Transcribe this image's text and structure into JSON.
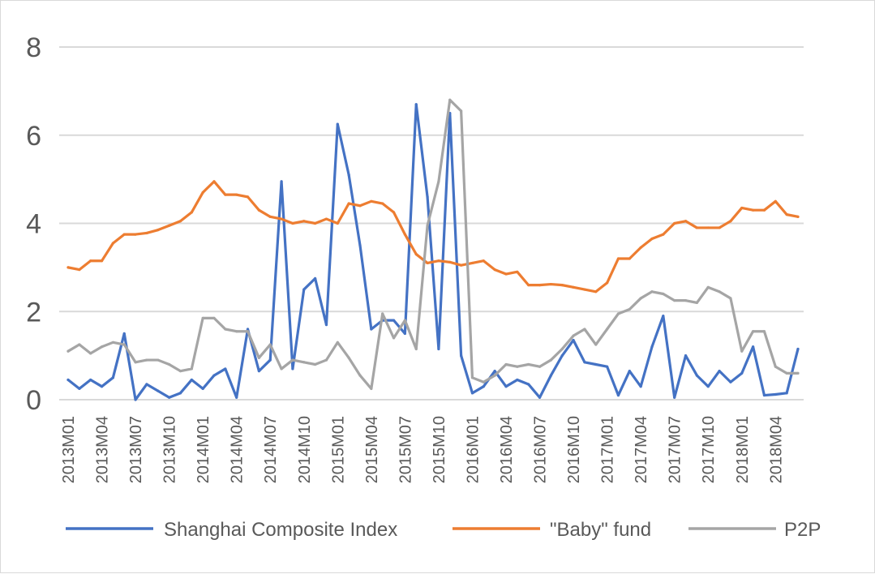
{
  "chart_data": {
    "type": "line",
    "title": "",
    "xlabel": "",
    "ylabel": "",
    "ylim": [
      0,
      8
    ],
    "yticks": [
      0,
      2,
      4,
      6,
      8
    ],
    "grid": true,
    "legend_position": "bottom",
    "x": [
      "2013M01",
      "2013M02",
      "2013M03",
      "2013M04",
      "2013M05",
      "2013M06",
      "2013M07",
      "2013M08",
      "2013M09",
      "2013M10",
      "2013M11",
      "2013M12",
      "2014M01",
      "2014M02",
      "2014M03",
      "2014M04",
      "2014M05",
      "2014M06",
      "2014M07",
      "2014M08",
      "2014M09",
      "2014M10",
      "2014M11",
      "2014M12",
      "2015M01",
      "2015M02",
      "2015M03",
      "2015M04",
      "2015M05",
      "2015M06",
      "2015M07",
      "2015M08",
      "2015M09",
      "2015M10",
      "2015M11",
      "2015M12",
      "2016M01",
      "2016M02",
      "2016M03",
      "2016M04",
      "2016M05",
      "2016M06",
      "2016M07",
      "2016M08",
      "2016M09",
      "2016M10",
      "2016M11",
      "2016M12",
      "2017M01",
      "2017M02",
      "2017M03",
      "2017M04",
      "2017M05",
      "2017M06",
      "2017M07",
      "2017M08",
      "2017M09",
      "2017M10",
      "2017M11",
      "2017M12",
      "2018M01",
      "2018M02",
      "2018M03",
      "2018M04",
      "2018M05",
      "2018M06"
    ],
    "x_tick_labels": [
      "2013M01",
      "2013M04",
      "2013M07",
      "2013M10",
      "2014M01",
      "2014M04",
      "2014M07",
      "2014M10",
      "2015M01",
      "2015M04",
      "2015M07",
      "2015M10",
      "2016M01",
      "2016M04",
      "2016M07",
      "2016M10",
      "2017M01",
      "2017M04",
      "2017M07",
      "2017M10",
      "2018M01",
      "2018M04"
    ],
    "series": [
      {
        "name": "Shanghai Composite Index",
        "color": "#4472c4",
        "values": [
          0.45,
          0.25,
          0.45,
          0.3,
          0.5,
          1.5,
          0.0,
          0.35,
          0.2,
          0.05,
          0.15,
          0.45,
          0.25,
          0.55,
          0.7,
          0.05,
          1.6,
          0.65,
          0.9,
          4.95,
          0.7,
          2.5,
          2.75,
          1.7,
          6.25,
          5.1,
          3.5,
          1.6,
          1.8,
          1.8,
          1.5,
          6.7,
          4.6,
          1.15,
          6.5,
          1.0,
          0.15,
          0.3,
          0.65,
          0.3,
          0.45,
          0.35,
          0.05,
          0.55,
          1.0,
          1.35,
          0.85,
          0.8,
          0.75,
          0.1,
          0.65,
          0.3,
          1.2,
          1.9,
          0.05,
          1.0,
          0.55,
          0.3,
          0.65,
          0.4,
          0.6,
          1.2,
          0.1,
          0.12,
          0.15,
          1.15
        ]
      },
      {
        "name": "\"Baby\" fund",
        "color": "#ed7d31",
        "values": [
          3.0,
          2.95,
          3.15,
          3.15,
          3.55,
          3.75,
          3.75,
          3.78,
          3.85,
          3.95,
          4.05,
          4.25,
          4.7,
          4.95,
          4.65,
          4.65,
          4.6,
          4.3,
          4.15,
          4.1,
          4.0,
          4.05,
          4.0,
          4.1,
          4.0,
          4.45,
          4.4,
          4.5,
          4.45,
          4.25,
          3.75,
          3.3,
          3.1,
          3.15,
          3.12,
          3.05,
          3.1,
          3.15,
          2.95,
          2.85,
          2.9,
          2.6,
          2.6,
          2.62,
          2.6,
          2.55,
          2.5,
          2.45,
          2.65,
          3.2,
          3.2,
          3.45,
          3.65,
          3.75,
          4.0,
          4.05,
          3.9,
          3.9,
          3.9,
          4.05,
          4.35,
          4.3,
          4.3,
          4.5,
          4.2,
          4.15
        ]
      },
      {
        "name": "P2P",
        "color": "#a5a5a5",
        "values": [
          1.1,
          1.25,
          1.05,
          1.2,
          1.3,
          1.25,
          0.85,
          0.9,
          0.9,
          0.8,
          0.65,
          0.7,
          1.85,
          1.85,
          1.6,
          1.55,
          1.55,
          0.95,
          1.25,
          0.7,
          0.9,
          0.85,
          0.8,
          0.9,
          1.3,
          0.95,
          0.55,
          0.25,
          1.95,
          1.4,
          1.8,
          1.15,
          3.95,
          4.95,
          6.8,
          6.55,
          0.5,
          0.4,
          0.55,
          0.8,
          0.75,
          0.8,
          0.75,
          0.9,
          1.15,
          1.45,
          1.6,
          1.25,
          1.6,
          1.95,
          2.05,
          2.3,
          2.45,
          2.4,
          2.25,
          2.25,
          2.2,
          2.55,
          2.45,
          2.3,
          1.1,
          1.55,
          1.55,
          0.75,
          0.6,
          0.6
        ]
      }
    ]
  }
}
